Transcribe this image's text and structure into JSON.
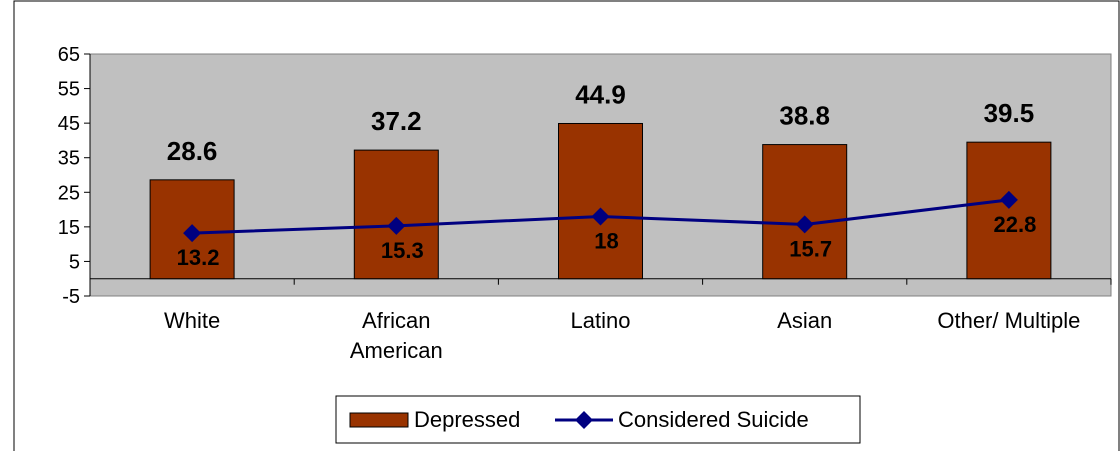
{
  "colors": {
    "plot_background": "#c0c0c0",
    "bar_fill": "#993300",
    "line_color": "#000080",
    "page_background": "#ffffff"
  },
  "chart_data": {
    "type": "bar",
    "categories": [
      [
        "White"
      ],
      [
        "African",
        "American"
      ],
      [
        "Latino"
      ],
      [
        "Asian"
      ],
      [
        "Other/ Multiple"
      ]
    ],
    "series": [
      {
        "name": "Depressed",
        "type": "bar",
        "values": [
          28.6,
          37.2,
          44.9,
          38.8,
          39.5
        ],
        "labels": [
          "28.6",
          "37.2",
          "44.9",
          "38.8",
          "39.5"
        ]
      },
      {
        "name": "Considered Suicide",
        "type": "line",
        "values": [
          13.2,
          15.3,
          18,
          15.7,
          22.8
        ],
        "labels": [
          "13.2",
          "15.3",
          "18",
          "15.7",
          "22.8"
        ]
      }
    ],
    "ylim": [
      -5,
      65
    ],
    "yticks": [
      -5,
      5,
      15,
      25,
      35,
      45,
      55,
      65
    ],
    "grid": false,
    "legend_position": "bottom"
  }
}
